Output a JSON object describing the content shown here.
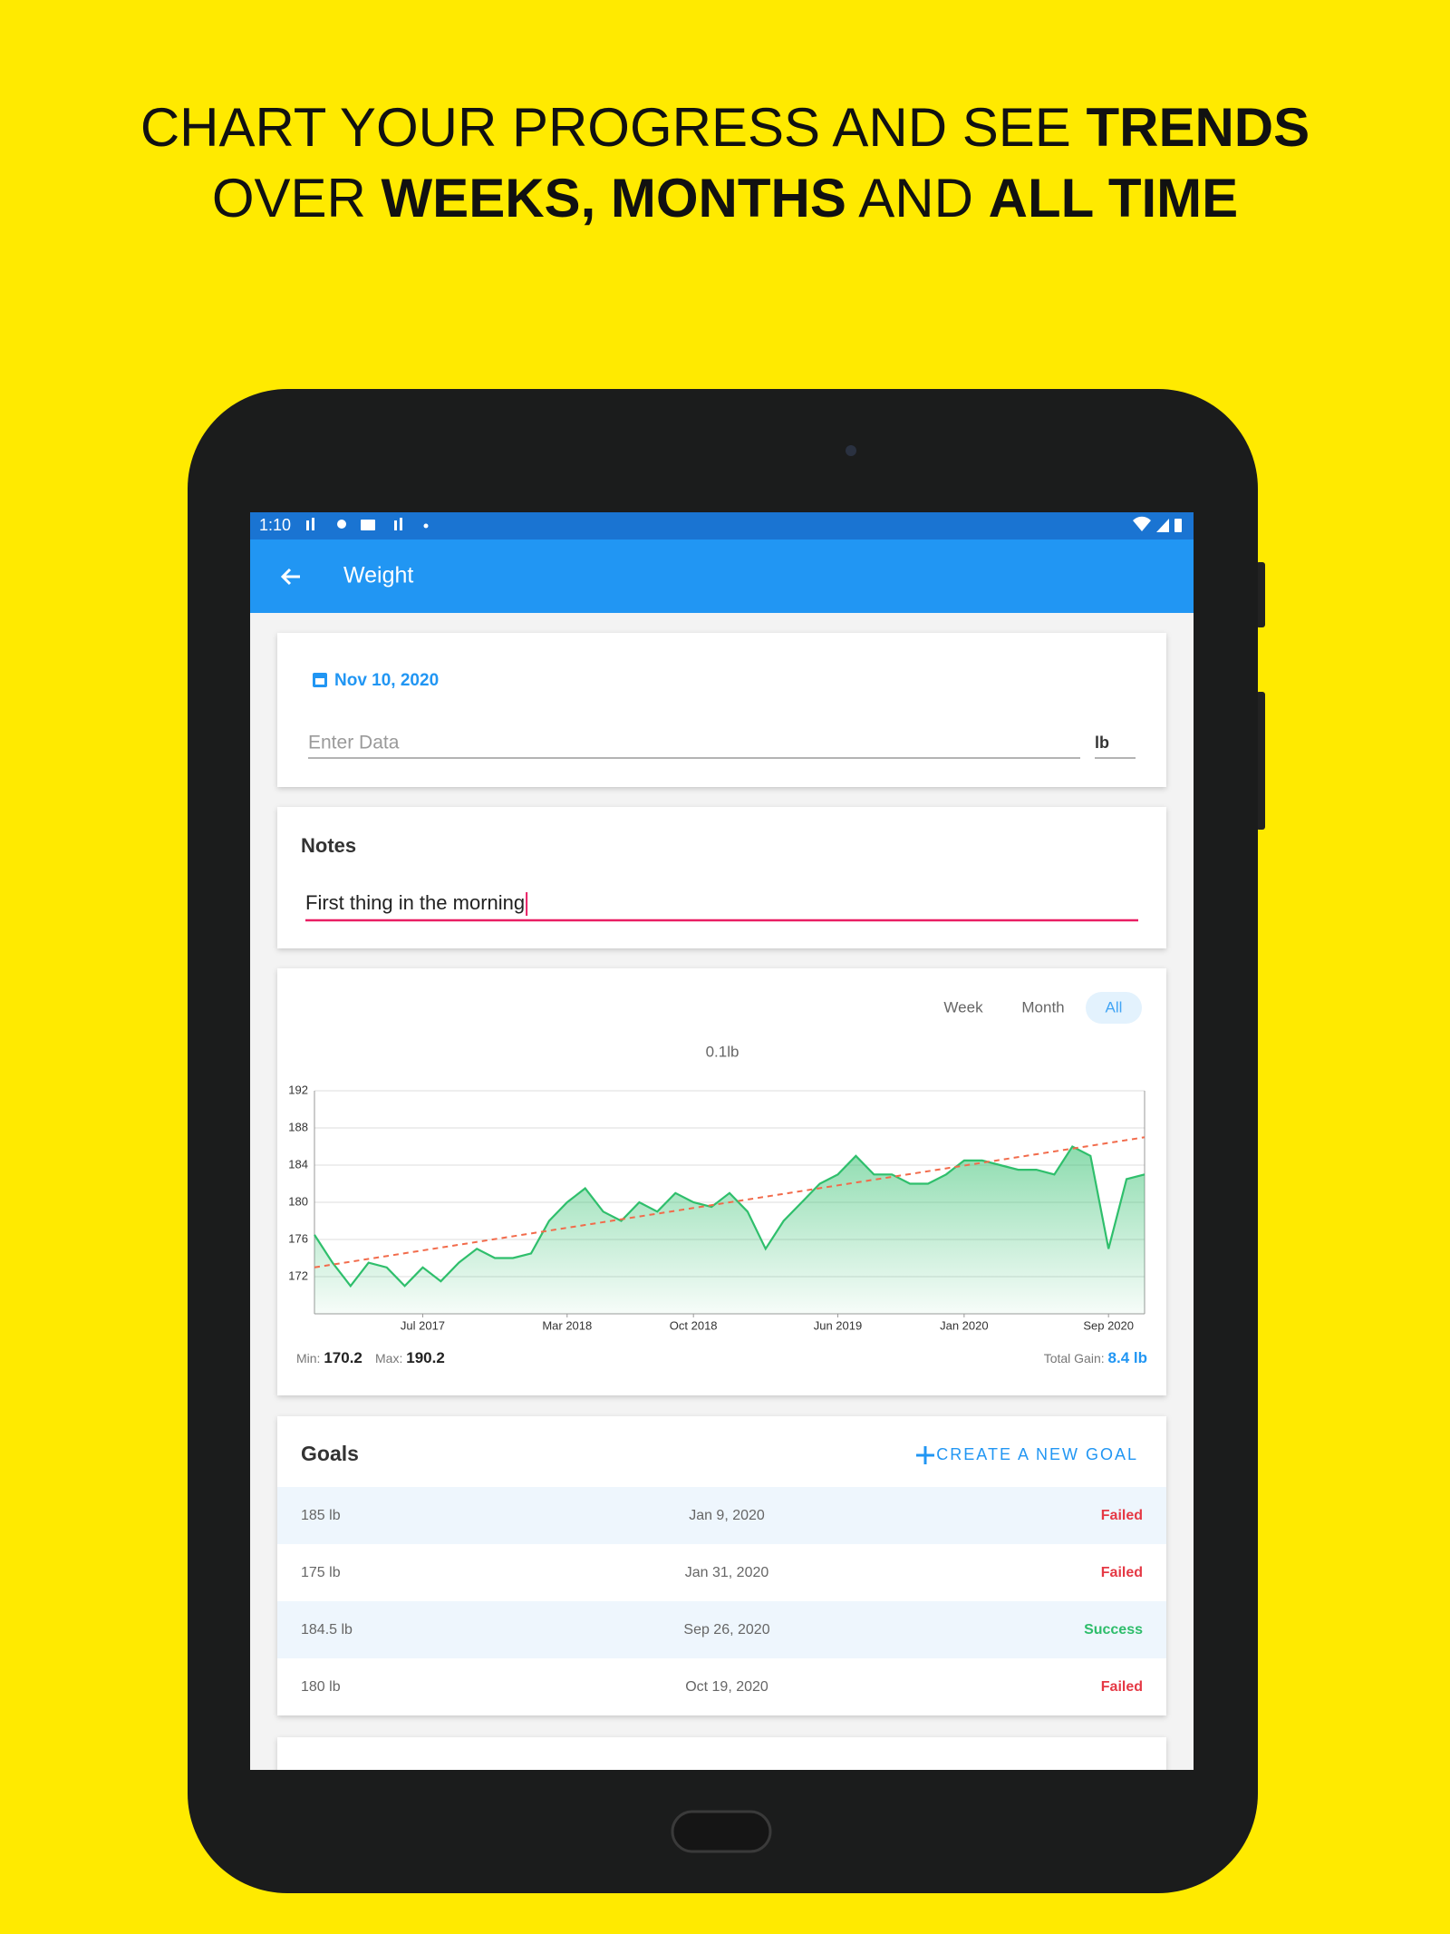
{
  "header": {
    "line1": [
      "CHART YOUR PROGRESS AND SEE ",
      "TRENDS"
    ],
    "line2": [
      "OVER ",
      "WEEKS, MONTHS",
      " AND ",
      "ALL TIME"
    ]
  },
  "status_bar": {
    "time": "1:10"
  },
  "app_bar": {
    "title": "Weight"
  },
  "entry": {
    "date": "Nov 10, 2020",
    "placeholder": "Enter Data",
    "unit": "lb"
  },
  "notes": {
    "label": "Notes",
    "value": "First thing in the morning"
  },
  "range_tabs": {
    "options": [
      "Week",
      "Month",
      "All"
    ],
    "selected": 2
  },
  "chart_data": {
    "type": "line",
    "subtitle": "0.1lb",
    "x": [
      "2017-01",
      "2017-02",
      "2017-03",
      "2017-04",
      "2017-05",
      "2017-06",
      "2017-07",
      "2017-08",
      "2017-09",
      "2017-10",
      "2017-11",
      "2017-12",
      "2018-01",
      "2018-02",
      "2018-03",
      "2018-04",
      "2018-05",
      "2018-06",
      "2018-07",
      "2018-08",
      "2018-09",
      "2018-10",
      "2018-11",
      "2018-12",
      "2019-01",
      "2019-02",
      "2019-03",
      "2019-04",
      "2019-05",
      "2019-06",
      "2019-07",
      "2019-08",
      "2019-09",
      "2019-10",
      "2019-11",
      "2019-12",
      "2020-01",
      "2020-02",
      "2020-03",
      "2020-04",
      "2020-05",
      "2020-06",
      "2020-07",
      "2020-08",
      "2020-09",
      "2020-10",
      "2020-11"
    ],
    "series": [
      {
        "color": "#2fbf6c",
        "area": true,
        "values": [
          176.5,
          173.5,
          171,
          173.5,
          173,
          171,
          173,
          171.5,
          173.5,
          175,
          174,
          174,
          174.5,
          178,
          180,
          181.5,
          179,
          178,
          180,
          179,
          181,
          180,
          179.5,
          181,
          179,
          175,
          178,
          180,
          182,
          183,
          185,
          183,
          183,
          182,
          182,
          183,
          184.5,
          184.5,
          184,
          183.5,
          183.5,
          183,
          186,
          185,
          175,
          182.5,
          183
        ]
      },
      {
        "color": "#f26b4b",
        "style": "dashed",
        "x": [
          "2017-01",
          "2020-11"
        ],
        "values": [
          173,
          187
        ]
      }
    ],
    "xlim": [
      "2017-01",
      "2020-11"
    ],
    "xticks": [
      {
        "value": "2017-07",
        "label": "Jul 2017"
      },
      {
        "value": "2018-03",
        "label": "Mar 2018"
      },
      {
        "value": "2018-10",
        "label": "Oct 2018"
      },
      {
        "value": "2019-06",
        "label": "Jun 2019"
      },
      {
        "value": "2020-01",
        "label": "Jan 2020"
      },
      {
        "value": "2020-09",
        "label": "Sep 2020"
      }
    ],
    "ylim": [
      168,
      192
    ],
    "yticks": [
      172,
      176,
      180,
      184,
      188,
      192
    ],
    "grid": true,
    "stats": {
      "min_label": "Min:",
      "min": 170.2,
      "max_label": "Max:",
      "max": 190.2,
      "gain_label": "Total Gain:",
      "gain": "8.4 lb"
    }
  },
  "goals": {
    "title": "Goals",
    "action": "CREATE A NEW GOAL",
    "rows": [
      {
        "goal": "185 lb",
        "date": "Jan 9, 2020",
        "status": "Failed",
        "status_color": "#e53945",
        "highlight": true
      },
      {
        "goal": "175 lb",
        "date": "Jan 31, 2020",
        "status": "Failed",
        "status_color": "#e53945",
        "highlight": false
      },
      {
        "goal": "184.5 lb",
        "date": "Sep 26, 2020",
        "status": "Success",
        "status_color": "#2ebd6b",
        "highlight": true
      },
      {
        "goal": "180 lb",
        "date": "Oct 19, 2020",
        "status": "Failed",
        "status_color": "#e53945",
        "highlight": false
      }
    ]
  }
}
